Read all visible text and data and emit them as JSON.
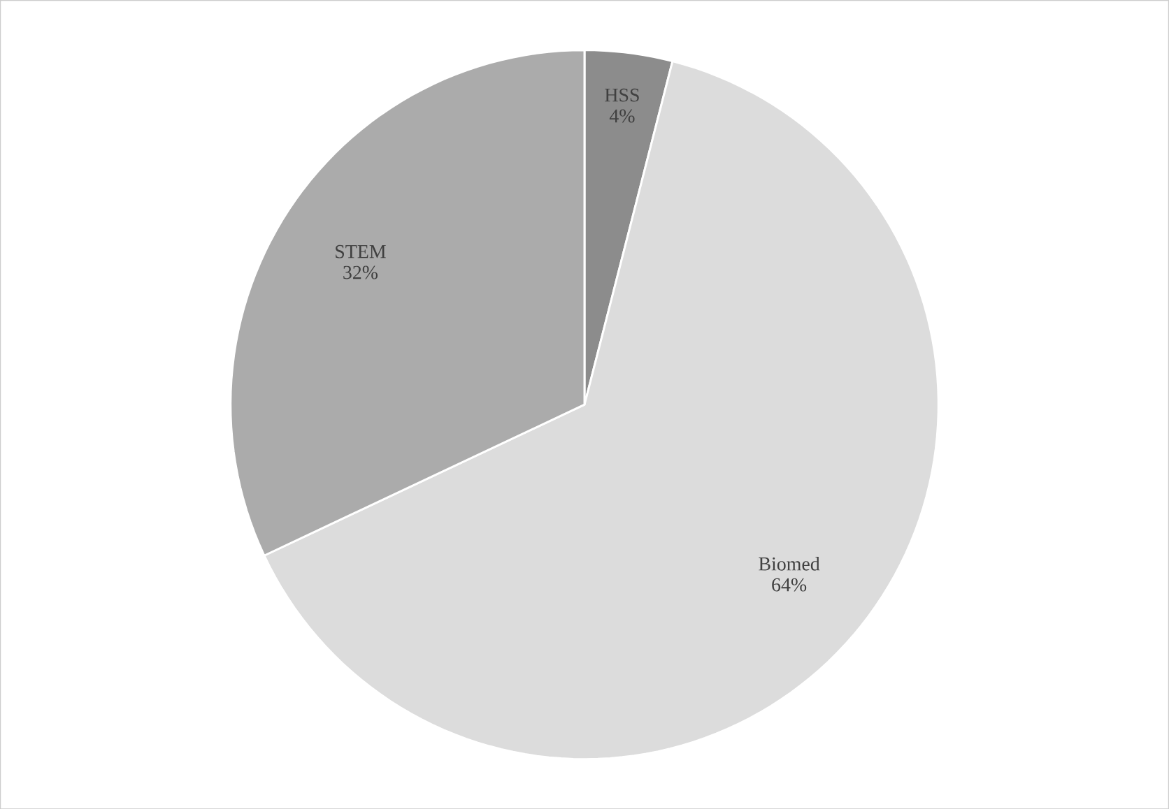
{
  "chart_data": {
    "type": "pie",
    "categories": [
      "HSS",
      "Biomed",
      "STEM"
    ],
    "values": [
      4,
      64,
      32
    ],
    "value_labels": [
      "4%",
      "64%",
      "32%"
    ],
    "colors": [
      "#8c8c8c",
      "#dcdcdc",
      "#ababab"
    ]
  }
}
